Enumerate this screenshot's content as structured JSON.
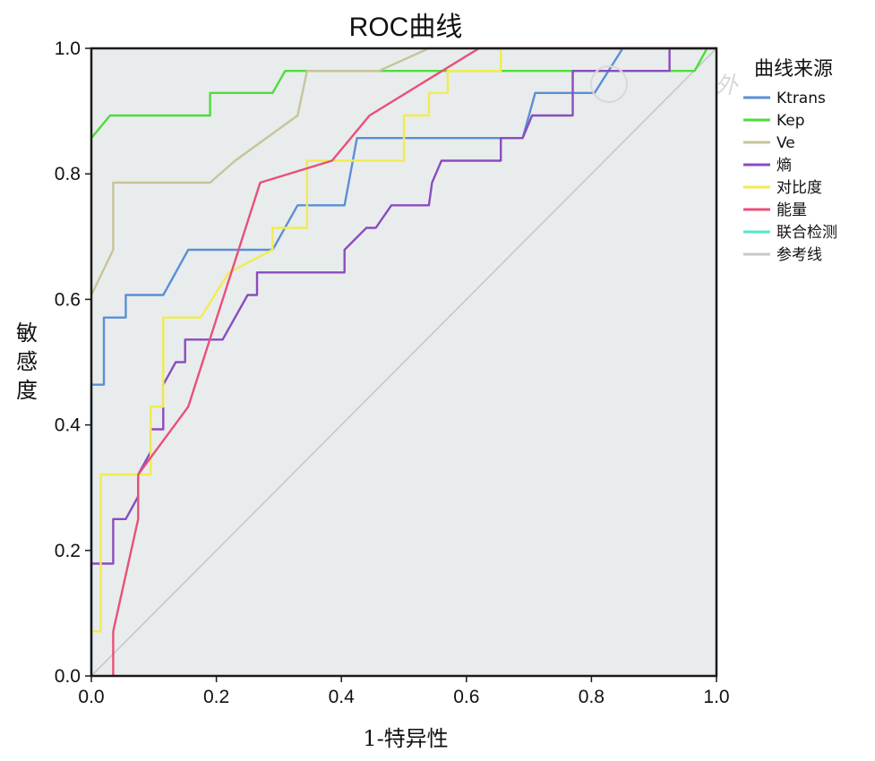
{
  "chart_data": {
    "type": "line",
    "title": "ROC曲线",
    "xlabel": "1-特异性",
    "ylabel": "敏感度",
    "xlim": [
      0,
      1
    ],
    "ylim": [
      0,
      1
    ],
    "xticks": [
      "0.0",
      "0.2",
      "0.4",
      "0.6",
      "0.8",
      "1.0"
    ],
    "yticks": [
      "0.0",
      "0.2",
      "0.4",
      "0.6",
      "0.8",
      "1.0"
    ],
    "grid": false,
    "background": "#e9ecec",
    "legend": {
      "title": "曲线来源",
      "position": "right"
    },
    "watermark": "中华普外",
    "series": [
      {
        "name": "Ktrans",
        "color": "#5a8fd6",
        "points": [
          [
            0,
            0
          ],
          [
            0,
            0.464
          ],
          [
            0.02,
            0.464
          ],
          [
            0.02,
            0.571
          ],
          [
            0.055,
            0.571
          ],
          [
            0.055,
            0.607
          ],
          [
            0.115,
            0.607
          ],
          [
            0.155,
            0.679
          ],
          [
            0.29,
            0.679
          ],
          [
            0.33,
            0.75
          ],
          [
            0.405,
            0.75
          ],
          [
            0.425,
            0.857
          ],
          [
            0.69,
            0.857
          ],
          [
            0.71,
            0.929
          ],
          [
            0.805,
            0.929
          ],
          [
            0.85,
            1.0
          ],
          [
            1.0,
            1.0
          ]
        ]
      },
      {
        "name": "Kep",
        "color": "#4ddc3b",
        "points": [
          [
            0,
            0.857
          ],
          [
            0.03,
            0.893
          ],
          [
            0.19,
            0.893
          ],
          [
            0.19,
            0.929
          ],
          [
            0.29,
            0.929
          ],
          [
            0.31,
            0.964
          ],
          [
            0.965,
            0.964
          ],
          [
            0.985,
            1.0
          ],
          [
            1.0,
            1.0
          ]
        ]
      },
      {
        "name": "Ve",
        "color": "#c7c49a",
        "points": [
          [
            0,
            0.607
          ],
          [
            0.035,
            0.679
          ],
          [
            0.035,
            0.786
          ],
          [
            0.19,
            0.786
          ],
          [
            0.23,
            0.821
          ],
          [
            0.33,
            0.893
          ],
          [
            0.345,
            0.964
          ],
          [
            0.46,
            0.964
          ],
          [
            0.54,
            1.0
          ],
          [
            1.0,
            1.0
          ]
        ]
      },
      {
        "name": "熵",
        "color": "#8a4cc0",
        "points": [
          [
            0,
            0.179
          ],
          [
            0.035,
            0.179
          ],
          [
            0.035,
            0.25
          ],
          [
            0.055,
            0.25
          ],
          [
            0.075,
            0.286
          ],
          [
            0.075,
            0.321
          ],
          [
            0.095,
            0.357
          ],
          [
            0.095,
            0.393
          ],
          [
            0.115,
            0.393
          ],
          [
            0.115,
            0.464
          ],
          [
            0.135,
            0.5
          ],
          [
            0.15,
            0.5
          ],
          [
            0.15,
            0.536
          ],
          [
            0.21,
            0.536
          ],
          [
            0.25,
            0.607
          ],
          [
            0.265,
            0.607
          ],
          [
            0.265,
            0.643
          ],
          [
            0.405,
            0.643
          ],
          [
            0.405,
            0.679
          ],
          [
            0.44,
            0.714
          ],
          [
            0.455,
            0.714
          ],
          [
            0.48,
            0.75
          ],
          [
            0.54,
            0.75
          ],
          [
            0.545,
            0.786
          ],
          [
            0.56,
            0.821
          ],
          [
            0.655,
            0.821
          ],
          [
            0.655,
            0.857
          ],
          [
            0.69,
            0.857
          ],
          [
            0.705,
            0.893
          ],
          [
            0.77,
            0.893
          ],
          [
            0.77,
            0.964
          ],
          [
            0.925,
            0.964
          ],
          [
            0.925,
            1.0
          ],
          [
            1.0,
            1.0
          ]
        ]
      },
      {
        "name": "对比度",
        "color": "#f0ec52",
        "points": [
          [
            0,
            0.071
          ],
          [
            0.015,
            0.071
          ],
          [
            0.015,
            0.321
          ],
          [
            0.095,
            0.321
          ],
          [
            0.095,
            0.429
          ],
          [
            0.115,
            0.429
          ],
          [
            0.115,
            0.571
          ],
          [
            0.175,
            0.571
          ],
          [
            0.22,
            0.643
          ],
          [
            0.29,
            0.679
          ],
          [
            0.29,
            0.714
          ],
          [
            0.345,
            0.714
          ],
          [
            0.345,
            0.821
          ],
          [
            0.5,
            0.821
          ],
          [
            0.5,
            0.893
          ],
          [
            0.54,
            0.893
          ],
          [
            0.54,
            0.929
          ],
          [
            0.57,
            0.929
          ],
          [
            0.57,
            0.964
          ],
          [
            0.655,
            0.964
          ],
          [
            0.655,
            1.0
          ],
          [
            1.0,
            1.0
          ]
        ]
      },
      {
        "name": "能量",
        "color": "#e8507a",
        "points": [
          [
            0.035,
            0
          ],
          [
            0.035,
            0.071
          ],
          [
            0.075,
            0.25
          ],
          [
            0.075,
            0.321
          ],
          [
            0.155,
            0.429
          ],
          [
            0.27,
            0.786
          ],
          [
            0.385,
            0.821
          ],
          [
            0.445,
            0.893
          ],
          [
            0.62,
            1.0
          ],
          [
            1.0,
            1.0
          ]
        ]
      },
      {
        "name": "联合检测",
        "color": "#55e6c8",
        "points": []
      },
      {
        "name": "参考线",
        "color": "#c8c8c8",
        "points": [
          [
            0,
            0
          ],
          [
            1,
            1
          ]
        ]
      }
    ]
  }
}
